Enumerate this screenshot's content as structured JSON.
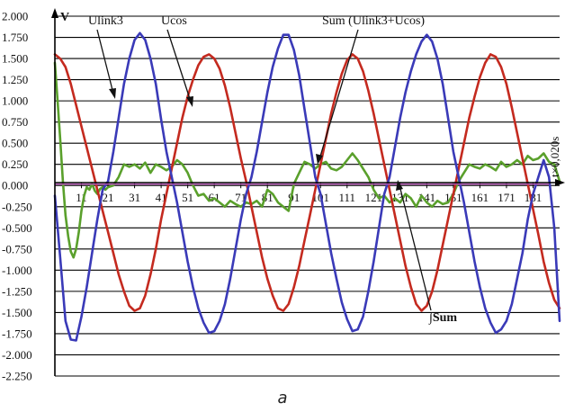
{
  "caption": "a",
  "chart_data": {
    "type": "line",
    "y_unit_label": "V",
    "x_unit_label": "t×0,020s",
    "ylim": [
      -2.25,
      2.0
    ],
    "xlim": [
      1,
      191
    ],
    "grid": {
      "horizontal": true,
      "vertical": false
    },
    "y_ticks": [
      "2.000",
      "1.750",
      "1.500",
      "1.250",
      "1.000",
      "0.750",
      "0.500",
      "0.250",
      "0.000",
      "-0.250",
      "-0.500",
      "-0.750",
      "-1.000",
      "-1.250",
      "-1.500",
      "-1.750",
      "-2.000",
      "-2.250"
    ],
    "y_tick_values": [
      2.0,
      1.75,
      1.5,
      1.25,
      1.0,
      0.75,
      0.5,
      0.25,
      0.0,
      -0.25,
      -0.5,
      -0.75,
      -1.0,
      -1.25,
      -1.5,
      -1.75,
      -2.0,
      -2.25
    ],
    "x_ticks": [
      "11",
      "21",
      "31",
      "41",
      "51",
      "61",
      "71",
      "81",
      "91",
      "101",
      "111",
      "121",
      "131",
      "141",
      "151",
      "161",
      "171",
      "181"
    ],
    "x_tick_values": [
      11,
      21,
      31,
      41,
      51,
      61,
      71,
      81,
      91,
      101,
      111,
      121,
      131,
      141,
      151,
      161,
      171,
      181
    ],
    "series": [
      {
        "name": "Ulink3",
        "color": "#3a3ab8",
        "x": [
          1,
          3,
          5,
          7,
          9,
          11,
          13,
          15,
          17,
          19,
          21,
          23,
          25,
          27,
          29,
          31,
          33,
          35,
          37,
          39,
          41,
          43,
          45,
          47,
          49,
          51,
          53,
          55,
          57,
          59,
          61,
          63,
          65,
          67,
          69,
          71,
          73,
          75,
          77,
          79,
          81,
          83,
          85,
          87,
          89,
          91,
          93,
          95,
          97,
          99,
          101,
          103,
          105,
          107,
          109,
          111,
          113,
          115,
          117,
          119,
          121,
          123,
          125,
          127,
          129,
          131,
          133,
          135,
          137,
          139,
          141,
          143,
          145,
          147,
          149,
          151,
          153,
          155,
          157,
          159,
          161,
          163,
          165,
          167,
          169,
          171,
          173,
          175,
          177,
          179,
          181,
          183,
          185,
          187,
          189,
          191
        ],
        "y": [
          -0.12,
          -0.85,
          -1.6,
          -1.82,
          -1.83,
          -1.55,
          -1.2,
          -0.8,
          -0.4,
          -0.05,
          0.05,
          0.4,
          0.8,
          1.2,
          1.5,
          1.72,
          1.8,
          1.72,
          1.5,
          1.2,
          0.78,
          0.4,
          0.1,
          -0.2,
          -0.55,
          -0.9,
          -1.2,
          -1.45,
          -1.62,
          -1.74,
          -1.72,
          -1.6,
          -1.4,
          -1.1,
          -0.75,
          -0.4,
          -0.1,
          0.1,
          0.4,
          0.75,
          1.1,
          1.4,
          1.62,
          1.78,
          1.78,
          1.6,
          1.3,
          0.9,
          0.5,
          0.1,
          -0.1,
          -0.45,
          -0.8,
          -1.1,
          -1.38,
          -1.58,
          -1.72,
          -1.7,
          -1.55,
          -1.25,
          -0.9,
          -0.5,
          -0.1,
          0.1,
          0.45,
          0.8,
          1.1,
          1.35,
          1.55,
          1.7,
          1.78,
          1.7,
          1.5,
          1.2,
          0.8,
          0.4,
          0.1,
          -0.2,
          -0.55,
          -0.9,
          -1.2,
          -1.45,
          -1.62,
          -1.74,
          -1.7,
          -1.6,
          -1.4,
          -1.1,
          -0.8,
          -0.4,
          -0.1,
          0.1,
          0.3,
          0.1,
          -0.5,
          -1.6
        ]
      },
      {
        "name": "Ucos",
        "color": "#c42a1f",
        "x": [
          1,
          3,
          5,
          7,
          9,
          11,
          13,
          15,
          17,
          19,
          21,
          23,
          25,
          27,
          29,
          31,
          33,
          35,
          37,
          39,
          41,
          43,
          45,
          47,
          49,
          51,
          53,
          55,
          57,
          59,
          61,
          63,
          65,
          67,
          69,
          71,
          73,
          75,
          77,
          79,
          81,
          83,
          85,
          87,
          89,
          91,
          93,
          95,
          97,
          99,
          101,
          103,
          105,
          107,
          109,
          111,
          113,
          115,
          117,
          119,
          121,
          123,
          125,
          127,
          129,
          131,
          133,
          135,
          137,
          139,
          141,
          143,
          145,
          147,
          149,
          151,
          153,
          155,
          157,
          159,
          161,
          163,
          165,
          167,
          169,
          171,
          173,
          175,
          177,
          179,
          181,
          183,
          185,
          187,
          189,
          191
        ],
        "y": [
          1.55,
          1.5,
          1.4,
          1.2,
          0.95,
          0.7,
          0.45,
          0.2,
          -0.05,
          -0.3,
          -0.55,
          -0.8,
          -1.05,
          -1.25,
          -1.42,
          -1.48,
          -1.45,
          -1.3,
          -1.05,
          -0.75,
          -0.4,
          -0.1,
          0.2,
          0.5,
          0.8,
          1.05,
          1.25,
          1.42,
          1.52,
          1.55,
          1.5,
          1.38,
          1.18,
          0.92,
          0.62,
          0.32,
          0.05,
          -0.25,
          -0.55,
          -0.85,
          -1.1,
          -1.3,
          -1.45,
          -1.48,
          -1.4,
          -1.2,
          -0.95,
          -0.65,
          -0.35,
          -0.05,
          0.25,
          0.55,
          0.85,
          1.1,
          1.32,
          1.48,
          1.55,
          1.5,
          1.35,
          1.12,
          0.85,
          0.55,
          0.25,
          -0.05,
          -0.35,
          -0.65,
          -0.95,
          -1.2,
          -1.4,
          -1.48,
          -1.42,
          -1.25,
          -1.0,
          -0.7,
          -0.4,
          -0.1,
          0.2,
          0.5,
          0.8,
          1.05,
          1.28,
          1.45,
          1.55,
          1.52,
          1.4,
          1.2,
          0.92,
          0.62,
          0.32,
          0.02,
          -0.28,
          -0.58,
          -0.9,
          -1.15,
          -1.35,
          -1.45
        ]
      },
      {
        "name": "Sum (Ulink3+Ucos)",
        "color": "#5aa02c",
        "x": [
          1,
          2,
          3,
          4,
          5,
          6,
          7,
          8,
          9,
          10,
          11,
          12,
          13,
          14,
          15,
          16,
          17,
          18,
          19,
          20,
          21,
          23,
          25,
          27,
          29,
          31,
          33,
          35,
          37,
          39,
          41,
          43,
          45,
          47,
          49,
          51,
          53,
          55,
          57,
          59,
          61,
          63,
          65,
          67,
          69,
          71,
          73,
          75,
          77,
          79,
          81,
          83,
          85,
          87,
          89,
          91,
          93,
          95,
          97,
          99,
          101,
          103,
          105,
          107,
          109,
          111,
          113,
          115,
          117,
          119,
          121,
          123,
          125,
          127,
          129,
          131,
          133,
          135,
          137,
          139,
          141,
          143,
          145,
          147,
          149,
          151,
          153,
          155,
          157,
          159,
          161,
          163,
          165,
          167,
          169,
          171,
          173,
          175,
          177,
          179,
          181,
          183,
          185,
          187,
          189,
          191
        ],
        "y": [
          1.45,
          1.0,
          0.55,
          0.05,
          -0.35,
          -0.6,
          -0.78,
          -0.85,
          -0.75,
          -0.55,
          -0.3,
          -0.12,
          -0.02,
          -0.05,
          0.02,
          -0.06,
          -0.1,
          -0.04,
          -0.02,
          -0.05,
          -0.02,
          0.0,
          0.1,
          0.25,
          0.22,
          0.25,
          0.2,
          0.27,
          0.15,
          0.25,
          0.22,
          0.18,
          0.22,
          0.3,
          0.25,
          0.15,
          0.0,
          -0.12,
          -0.1,
          -0.18,
          -0.15,
          -0.2,
          -0.25,
          -0.18,
          -0.22,
          -0.25,
          -0.2,
          -0.22,
          -0.18,
          -0.25,
          -0.05,
          -0.1,
          -0.2,
          -0.25,
          -0.3,
          0.02,
          0.15,
          0.28,
          0.25,
          0.2,
          0.25,
          0.28,
          0.2,
          0.18,
          0.22,
          0.3,
          0.38,
          0.3,
          0.2,
          0.1,
          -0.05,
          -0.15,
          -0.12,
          -0.2,
          -0.15,
          -0.2,
          -0.1,
          -0.15,
          -0.25,
          -0.12,
          -0.2,
          -0.25,
          -0.18,
          -0.22,
          -0.2,
          -0.1,
          0.05,
          0.15,
          0.25,
          0.22,
          0.2,
          0.25,
          0.22,
          0.18,
          0.28,
          0.22,
          0.25,
          0.3,
          0.25,
          0.35,
          0.3,
          0.32,
          0.38,
          0.28,
          0.25,
          0.05
        ]
      }
    ],
    "annotations": [
      {
        "text": "Ulink3",
        "bold": false
      },
      {
        "text": "Ucos",
        "bold": false
      },
      {
        "text": "Sum (Ulink3+Ucos)",
        "bold": false
      },
      {
        "text": "∫Sum",
        "bold": true
      }
    ]
  }
}
